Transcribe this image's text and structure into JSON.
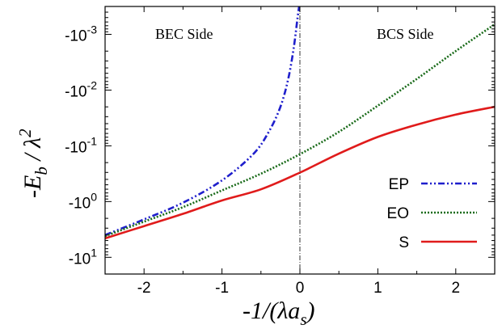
{
  "chart_data": {
    "type": "line",
    "xlabel": "-1/(λa",
    "xlabel_sub": "s",
    "xlabel_close": ")",
    "ylabel": "-E",
    "ylabel_sub": "b",
    "ylabel_rest": " / λ",
    "ylabel_sup": "2",
    "xlim": [
      -2.5,
      2.5
    ],
    "ylim_log10": [
      -3.5,
      1.3
    ],
    "y_scale": "log-reversed",
    "x_ticks": [
      {
        "value": -2,
        "label": "-2"
      },
      {
        "value": -1,
        "label": "-1"
      },
      {
        "value": 0,
        "label": "0"
      },
      {
        "value": 1,
        "label": "1"
      },
      {
        "value": 2,
        "label": "2"
      }
    ],
    "y_ticks": [
      {
        "exp": -3,
        "base": "-10",
        "sup": "-3"
      },
      {
        "exp": -2,
        "base": "-10",
        "sup": "-2"
      },
      {
        "exp": -1,
        "base": "-10",
        "sup": "-1"
      },
      {
        "exp": 0,
        "base": "-10",
        "sup": "0"
      },
      {
        "exp": 1,
        "base": "-10",
        "sup": "1"
      }
    ],
    "annotations": [
      {
        "text": "BEC Side",
        "position": "upper-left"
      },
      {
        "text": "BCS Side",
        "position": "upper-right"
      }
    ],
    "legend_position": "bottom-right",
    "series": [
      {
        "name": "EP",
        "color": "#1f1fcc",
        "style": "dash-dot-dot",
        "points": [
          [
            -2.5,
            0.6
          ],
          [
            -2.0,
            0.32
          ],
          [
            -1.5,
            0.02
          ],
          [
            -1.0,
            -0.38
          ],
          [
            -0.6,
            -0.85
          ],
          [
            -0.4,
            -1.25
          ],
          [
            -0.25,
            -1.7
          ],
          [
            -0.15,
            -2.2
          ],
          [
            -0.08,
            -2.75
          ],
          [
            -0.03,
            -3.3
          ],
          [
            -0.01,
            -3.5
          ]
        ]
      },
      {
        "name": "EO",
        "color": "#1a6b1a",
        "style": "dotted",
        "points": [
          [
            -2.5,
            0.62
          ],
          [
            -2.0,
            0.36
          ],
          [
            -1.5,
            0.1
          ],
          [
            -1.0,
            -0.2
          ],
          [
            -0.5,
            -0.5
          ],
          [
            0.0,
            -0.85
          ],
          [
            0.5,
            -1.25
          ],
          [
            1.0,
            -1.72
          ],
          [
            1.5,
            -2.2
          ],
          [
            2.0,
            -2.7
          ],
          [
            2.5,
            -3.18
          ]
        ]
      },
      {
        "name": "S",
        "color": "#e01b1b",
        "style": "solid",
        "points": [
          [
            -2.5,
            0.66
          ],
          [
            -2.0,
            0.44
          ],
          [
            -1.5,
            0.22
          ],
          [
            -1.0,
            -0.02
          ],
          [
            -0.5,
            -0.22
          ],
          [
            0.0,
            -0.52
          ],
          [
            0.5,
            -0.86
          ],
          [
            1.0,
            -1.16
          ],
          [
            1.5,
            -1.38
          ],
          [
            2.0,
            -1.56
          ],
          [
            2.5,
            -1.7
          ]
        ]
      }
    ]
  }
}
